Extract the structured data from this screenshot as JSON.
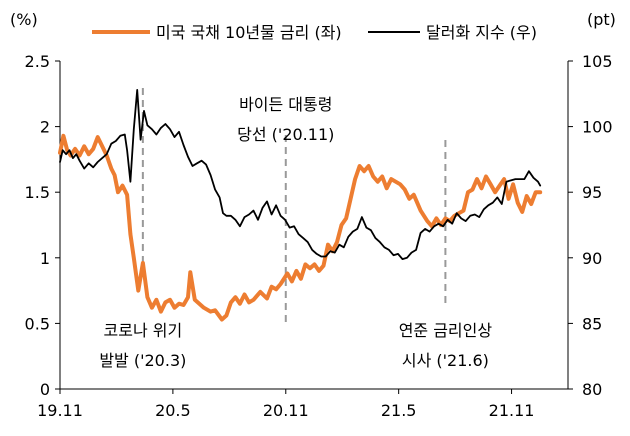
{
  "chart_data": {
    "type": "line",
    "left_axis": {
      "unit": "(%)",
      "range": [
        0,
        2.5
      ],
      "ticks": [
        0,
        0.5,
        1,
        1.5,
        2,
        2.5
      ],
      "tick_labels": [
        "0",
        "0.5",
        "1",
        "1.5",
        "2",
        "2.5"
      ]
    },
    "right_axis": {
      "unit": "(pt)",
      "range": [
        80,
        105
      ],
      "ticks": [
        80,
        85,
        90,
        95,
        100,
        105
      ],
      "tick_labels": [
        "80",
        "85",
        "90",
        "95",
        "100",
        "105"
      ]
    },
    "x_axis": {
      "range": [
        2019.833,
        2022.083
      ],
      "ticks": [
        2019.833,
        2020.333,
        2020.833,
        2021.333,
        2021.833
      ],
      "tick_labels": [
        "19.11",
        "20.5",
        "20.11",
        "21.5",
        "21.11"
      ]
    },
    "series": [
      {
        "name": "미국 국채 10년물 금리 (좌)",
        "axis": "left",
        "color": "#ed7d31",
        "points": [
          [
            2019.833,
            1.8
          ],
          [
            2019.848,
            1.93
          ],
          [
            2019.865,
            1.82
          ],
          [
            2019.88,
            1.78
          ],
          [
            2019.9,
            1.83
          ],
          [
            2019.92,
            1.78
          ],
          [
            2019.94,
            1.85
          ],
          [
            2019.96,
            1.79
          ],
          [
            2019.98,
            1.83
          ],
          [
            2020.0,
            1.92
          ],
          [
            2020.02,
            1.85
          ],
          [
            2020.04,
            1.78
          ],
          [
            2020.06,
            1.68
          ],
          [
            2020.075,
            1.63
          ],
          [
            2020.09,
            1.5
          ],
          [
            2020.11,
            1.55
          ],
          [
            2020.13,
            1.48
          ],
          [
            2020.145,
            1.18
          ],
          [
            2020.16,
            1.0
          ],
          [
            2020.18,
            0.75
          ],
          [
            2020.2,
            0.96
          ],
          [
            2020.22,
            0.7
          ],
          [
            2020.24,
            0.62
          ],
          [
            2020.26,
            0.68
          ],
          [
            2020.28,
            0.59
          ],
          [
            2020.3,
            0.66
          ],
          [
            2020.32,
            0.68
          ],
          [
            2020.34,
            0.62
          ],
          [
            2020.36,
            0.65
          ],
          [
            2020.38,
            0.64
          ],
          [
            2020.4,
            0.7
          ],
          [
            2020.41,
            0.89
          ],
          [
            2020.43,
            0.68
          ],
          [
            2020.45,
            0.65
          ],
          [
            2020.47,
            0.62
          ],
          [
            2020.5,
            0.59
          ],
          [
            2020.52,
            0.6
          ],
          [
            2020.55,
            0.53
          ],
          [
            2020.57,
            0.56
          ],
          [
            2020.59,
            0.66
          ],
          [
            2020.61,
            0.7
          ],
          [
            2020.63,
            0.65
          ],
          [
            2020.65,
            0.72
          ],
          [
            2020.67,
            0.66
          ],
          [
            2020.69,
            0.68
          ],
          [
            2020.72,
            0.74
          ],
          [
            2020.75,
            0.69
          ],
          [
            2020.77,
            0.78
          ],
          [
            2020.79,
            0.76
          ],
          [
            2020.81,
            0.8
          ],
          [
            2020.84,
            0.88
          ],
          [
            2020.86,
            0.82
          ],
          [
            2020.88,
            0.9
          ],
          [
            2020.9,
            0.84
          ],
          [
            2020.92,
            0.95
          ],
          [
            2020.94,
            0.92
          ],
          [
            2020.96,
            0.95
          ],
          [
            2020.98,
            0.9
          ],
          [
            2021.0,
            0.94
          ],
          [
            2021.02,
            1.1
          ],
          [
            2021.04,
            1.05
          ],
          [
            2021.06,
            1.12
          ],
          [
            2021.08,
            1.25
          ],
          [
            2021.1,
            1.3
          ],
          [
            2021.12,
            1.45
          ],
          [
            2021.14,
            1.6
          ],
          [
            2021.16,
            1.7
          ],
          [
            2021.18,
            1.66
          ],
          [
            2021.2,
            1.7
          ],
          [
            2021.22,
            1.62
          ],
          [
            2021.24,
            1.58
          ],
          [
            2021.26,
            1.62
          ],
          [
            2021.28,
            1.53
          ],
          [
            2021.3,
            1.6
          ],
          [
            2021.32,
            1.58
          ],
          [
            2021.34,
            1.56
          ],
          [
            2021.36,
            1.52
          ],
          [
            2021.38,
            1.45
          ],
          [
            2021.4,
            1.48
          ],
          [
            2021.43,
            1.36
          ],
          [
            2021.46,
            1.28
          ],
          [
            2021.48,
            1.24
          ],
          [
            2021.5,
            1.3
          ],
          [
            2021.52,
            1.25
          ],
          [
            2021.54,
            1.3
          ],
          [
            2021.56,
            1.28
          ],
          [
            2021.58,
            1.32
          ],
          [
            2021.6,
            1.34
          ],
          [
            2021.62,
            1.36
          ],
          [
            2021.64,
            1.5
          ],
          [
            2021.66,
            1.52
          ],
          [
            2021.68,
            1.6
          ],
          [
            2021.7,
            1.53
          ],
          [
            2021.72,
            1.62
          ],
          [
            2021.74,
            1.56
          ],
          [
            2021.76,
            1.5
          ],
          [
            2021.78,
            1.55
          ],
          [
            2021.8,
            1.6
          ],
          [
            2021.82,
            1.45
          ],
          [
            2021.84,
            1.56
          ],
          [
            2021.86,
            1.42
          ],
          [
            2021.88,
            1.35
          ],
          [
            2021.9,
            1.47
          ],
          [
            2021.92,
            1.41
          ],
          [
            2021.94,
            1.5
          ],
          [
            2021.96,
            1.5
          ]
        ]
      },
      {
        "name": "달러화 지수 (우)",
        "axis": "right",
        "color": "#000000",
        "points": [
          [
            2019.833,
            97.3
          ],
          [
            2019.845,
            98.2
          ],
          [
            2019.86,
            97.9
          ],
          [
            2019.875,
            98.2
          ],
          [
            2019.89,
            97.6
          ],
          [
            2019.905,
            97.9
          ],
          [
            2019.92,
            97.4
          ],
          [
            2019.94,
            96.8
          ],
          [
            2019.96,
            97.2
          ],
          [
            2019.98,
            96.9
          ],
          [
            2020.0,
            97.3
          ],
          [
            2020.02,
            97.6
          ],
          [
            2020.04,
            97.9
          ],
          [
            2020.06,
            98.7
          ],
          [
            2020.08,
            98.9
          ],
          [
            2020.1,
            99.3
          ],
          [
            2020.12,
            99.4
          ],
          [
            2020.13,
            98.2
          ],
          [
            2020.145,
            95.8
          ],
          [
            2020.16,
            99.8
          ],
          [
            2020.175,
            102.8
          ],
          [
            2020.19,
            99.0
          ],
          [
            2020.205,
            101.2
          ],
          [
            2020.22,
            100.1
          ],
          [
            2020.24,
            99.8
          ],
          [
            2020.26,
            99.4
          ],
          [
            2020.28,
            99.9
          ],
          [
            2020.3,
            100.2
          ],
          [
            2020.32,
            99.8
          ],
          [
            2020.34,
            99.2
          ],
          [
            2020.36,
            99.6
          ],
          [
            2020.38,
            98.6
          ],
          [
            2020.4,
            97.7
          ],
          [
            2020.42,
            97.0
          ],
          [
            2020.44,
            97.2
          ],
          [
            2020.46,
            97.4
          ],
          [
            2020.48,
            97.1
          ],
          [
            2020.5,
            96.3
          ],
          [
            2020.52,
            95.2
          ],
          [
            2020.54,
            94.6
          ],
          [
            2020.555,
            93.4
          ],
          [
            2020.57,
            93.2
          ],
          [
            2020.59,
            93.2
          ],
          [
            2020.61,
            92.9
          ],
          [
            2020.63,
            92.4
          ],
          [
            2020.65,
            93.1
          ],
          [
            2020.67,
            93.3
          ],
          [
            2020.69,
            93.6
          ],
          [
            2020.71,
            92.9
          ],
          [
            2020.73,
            93.8
          ],
          [
            2020.75,
            94.3
          ],
          [
            2020.77,
            93.3
          ],
          [
            2020.79,
            94.0
          ],
          [
            2020.81,
            93.2
          ],
          [
            2020.83,
            92.9
          ],
          [
            2020.85,
            92.3
          ],
          [
            2020.87,
            92.4
          ],
          [
            2020.89,
            91.8
          ],
          [
            2020.91,
            91.5
          ],
          [
            2020.93,
            91.2
          ],
          [
            2020.95,
            90.6
          ],
          [
            2020.97,
            90.3
          ],
          [
            2020.99,
            90.1
          ],
          [
            2021.01,
            90.1
          ],
          [
            2021.03,
            90.5
          ],
          [
            2021.05,
            90.4
          ],
          [
            2021.07,
            91.0
          ],
          [
            2021.09,
            90.8
          ],
          [
            2021.11,
            91.6
          ],
          [
            2021.13,
            92.0
          ],
          [
            2021.15,
            92.2
          ],
          [
            2021.17,
            93.1
          ],
          [
            2021.19,
            92.3
          ],
          [
            2021.21,
            92.1
          ],
          [
            2021.23,
            91.5
          ],
          [
            2021.25,
            91.2
          ],
          [
            2021.27,
            90.8
          ],
          [
            2021.29,
            90.6
          ],
          [
            2021.31,
            90.2
          ],
          [
            2021.33,
            90.3
          ],
          [
            2021.35,
            89.9
          ],
          [
            2021.37,
            90.0
          ],
          [
            2021.39,
            90.4
          ],
          [
            2021.41,
            90.6
          ],
          [
            2021.43,
            91.9
          ],
          [
            2021.45,
            92.2
          ],
          [
            2021.47,
            92.0
          ],
          [
            2021.49,
            92.4
          ],
          [
            2021.51,
            92.6
          ],
          [
            2021.53,
            92.4
          ],
          [
            2021.55,
            92.9
          ],
          [
            2021.57,
            92.6
          ],
          [
            2021.59,
            93.4
          ],
          [
            2021.61,
            93.0
          ],
          [
            2021.63,
            92.8
          ],
          [
            2021.65,
            93.2
          ],
          [
            2021.67,
            93.3
          ],
          [
            2021.69,
            93.1
          ],
          [
            2021.71,
            93.7
          ],
          [
            2021.73,
            94.0
          ],
          [
            2021.75,
            94.2
          ],
          [
            2021.77,
            94.6
          ],
          [
            2021.79,
            94.1
          ],
          [
            2021.81,
            95.8
          ],
          [
            2021.83,
            95.9
          ],
          [
            2021.85,
            96.0
          ],
          [
            2021.87,
            96.0
          ],
          [
            2021.89,
            96.0
          ],
          [
            2021.91,
            96.6
          ],
          [
            2021.93,
            96.1
          ],
          [
            2021.95,
            95.8
          ],
          [
            2021.96,
            95.5
          ]
        ]
      }
    ],
    "events": [
      {
        "x": 2020.2,
        "label": [
          "코로나 위기",
          "발발 ('20.3)"
        ]
      },
      {
        "x": 2020.833,
        "label": [
          "바이든 대통령",
          "당선 ('20.11)"
        ]
      },
      {
        "x": 2021.54,
        "label": [
          "연준 금리인상",
          "시사 ('21.6)"
        ]
      }
    ]
  }
}
